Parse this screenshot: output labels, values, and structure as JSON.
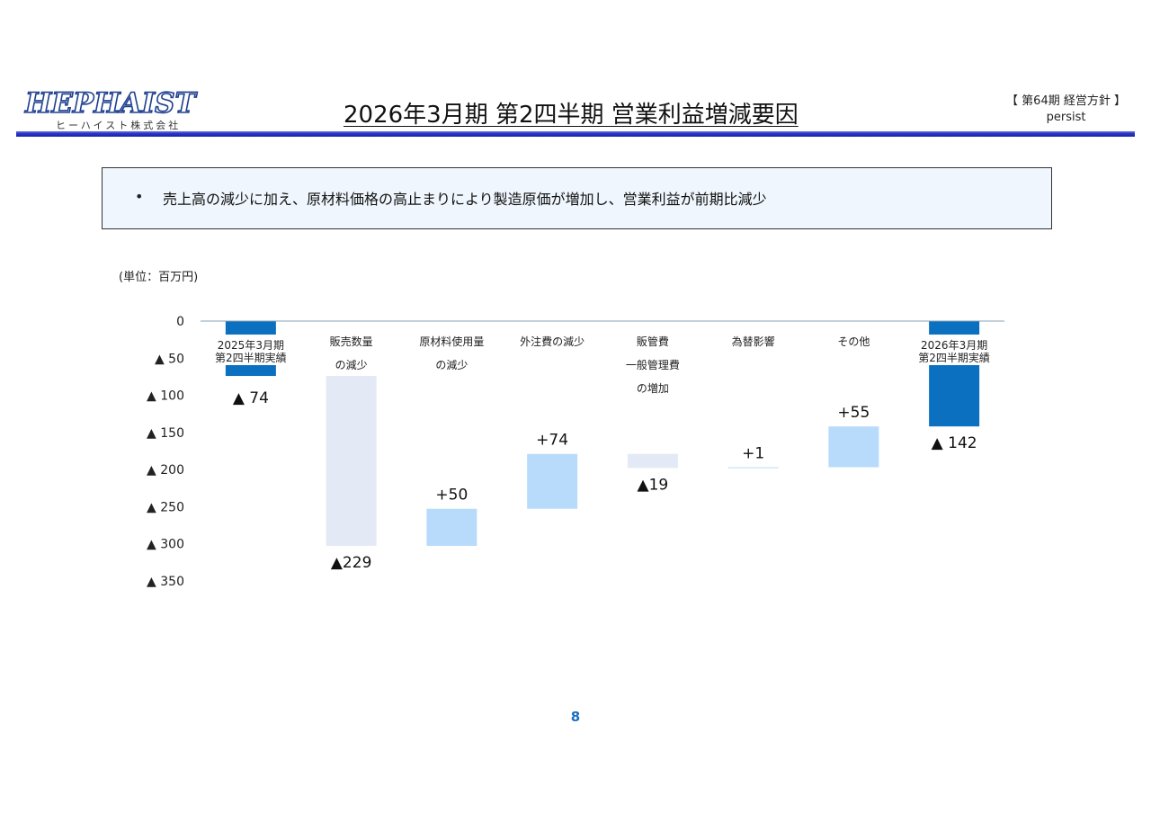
{
  "header": {
    "logo_text": "HEPHAIST",
    "logo_subtext": "ヒーハイスト株式会社",
    "title": "2026年3月期 第2四半期 営業利益増減要因",
    "corner_line1": "【 第64期 経営方針 】",
    "corner_line2": "persist"
  },
  "summary": {
    "bullet": "•",
    "text": "売上高の減少に加え、原材料価格の高止まりにより製造原価が増加し、営業利益が前期比減少"
  },
  "unit_label": "(単位：百万円)",
  "page_number": "8",
  "colors": {
    "total_bar": "#0b70c0",
    "decrease_bar": "#e3eaf5",
    "increase_bar": "#b9dbfb",
    "axis": "#8aa0b6"
  },
  "chart_data": {
    "type": "bar",
    "subtype": "waterfall",
    "ylim": [
      -350,
      0
    ],
    "yticks": [
      {
        "value": 0,
        "label": "0"
      },
      {
        "value": -50,
        "label": "▲ 50"
      },
      {
        "value": -100,
        "label": "▲ 100"
      },
      {
        "value": -150,
        "label": "▲ 150"
      },
      {
        "value": -200,
        "label": "▲ 200"
      },
      {
        "value": -250,
        "label": "▲ 250"
      },
      {
        "value": -300,
        "label": "▲ 300"
      },
      {
        "value": -350,
        "label": "▲ 350"
      }
    ],
    "bars": [
      {
        "category": [
          "2025年3月期",
          "第2四半期実績"
        ],
        "kind": "total",
        "start": 0,
        "end": -74,
        "label": "▲ 74"
      },
      {
        "category": [
          "販売数量",
          "の減少"
        ],
        "kind": "decrease",
        "start": -74,
        "end": -303,
        "label": "▲229"
      },
      {
        "category": [
          "原材料使用量",
          "の減少"
        ],
        "kind": "increase",
        "start": -303,
        "end": -253,
        "label": "+50"
      },
      {
        "category": [
          "外注費の減少"
        ],
        "kind": "increase",
        "start": -253,
        "end": -179,
        "label": "+74"
      },
      {
        "category": [
          "販管費",
          "一般管理費",
          "の増加"
        ],
        "kind": "decrease",
        "start": -179,
        "end": -198,
        "label": "▲19"
      },
      {
        "category": [
          "為替影響"
        ],
        "kind": "increase",
        "start": -198,
        "end": -197,
        "label": "+1"
      },
      {
        "category": [
          "その他"
        ],
        "kind": "increase",
        "start": -197,
        "end": -142,
        "label": "+55"
      },
      {
        "category": [
          "2026年3月期",
          "第2四半期実績"
        ],
        "kind": "total",
        "start": 0,
        "end": -142,
        "label": "▲ 142"
      }
    ]
  }
}
